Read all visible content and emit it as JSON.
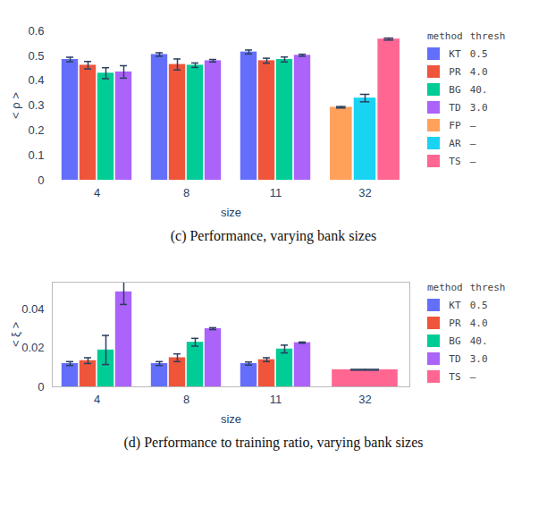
{
  "chart_data": [
    {
      "type": "bar",
      "caption": "(c) Performance, varying bank sizes",
      "x_label": "size",
      "y_label": "< ρ >",
      "categories": [
        "4",
        "8",
        "11",
        "32"
      ],
      "ylim": [
        0,
        0.6
      ],
      "yticks": [
        0,
        0.1,
        0.2,
        0.3,
        0.4,
        0.5,
        0.6
      ],
      "legend_columns": [
        "method",
        "thresh"
      ],
      "series": [
        {
          "name": "KT",
          "thresh": "0.5",
          "color": "#636efa",
          "values": [
            0.485,
            0.505,
            0.515,
            null
          ],
          "errors": [
            0.009,
            0.007,
            0.008,
            null
          ]
        },
        {
          "name": "PR",
          "thresh": "4.0",
          "color": "#ef553b",
          "values": [
            0.462,
            0.465,
            0.48,
            null
          ],
          "errors": [
            0.015,
            0.022,
            0.01,
            null
          ]
        },
        {
          "name": "BG",
          "thresh": "40.",
          "color": "#00cc96",
          "values": [
            0.43,
            0.462,
            0.485,
            null
          ],
          "errors": [
            0.022,
            0.009,
            0.01,
            null
          ]
        },
        {
          "name": "TD",
          "thresh": "3.0",
          "color": "#ab63fa",
          "values": [
            0.435,
            0.48,
            0.502,
            null
          ],
          "errors": [
            0.025,
            0.005,
            0.004,
            null
          ]
        },
        {
          "name": "FP",
          "thresh": "—",
          "color": "#ffa15a",
          "values": [
            null,
            null,
            null,
            0.293
          ],
          "errors": [
            null,
            null,
            null,
            0.003
          ]
        },
        {
          "name": "AR",
          "thresh": "—",
          "color": "#19d3f3",
          "values": [
            null,
            null,
            null,
            0.33
          ],
          "errors": [
            null,
            null,
            null,
            0.015
          ]
        },
        {
          "name": "TS",
          "thresh": "—",
          "color": "#ff6692",
          "values": [
            null,
            null,
            null,
            0.567
          ],
          "errors": [
            null,
            null,
            null,
            0.004
          ]
        }
      ]
    },
    {
      "type": "bar",
      "caption": "(d) Performance to training ratio, varying bank sizes",
      "x_label": "size",
      "y_label": "< ξ >",
      "categories": [
        "4",
        "8",
        "11",
        "32"
      ],
      "ylim": [
        0,
        0.054
      ],
      "yticks": [
        0,
        0.02,
        0.04
      ],
      "legend_columns": [
        "method",
        "thresh"
      ],
      "series": [
        {
          "name": "KT",
          "thresh": "0.5",
          "color": "#636efa",
          "values": [
            0.012,
            0.012,
            0.012,
            null
          ],
          "errors": [
            0.001,
            0.001,
            0.0008,
            null
          ]
        },
        {
          "name": "PR",
          "thresh": "4.0",
          "color": "#ef553b",
          "values": [
            0.0135,
            0.015,
            0.014,
            null
          ],
          "errors": [
            0.0015,
            0.002,
            0.001,
            null
          ]
        },
        {
          "name": "BG",
          "thresh": "40.",
          "color": "#00cc96",
          "values": [
            0.019,
            0.023,
            0.0195,
            null
          ],
          "errors": [
            0.0075,
            0.002,
            0.002,
            null
          ]
        },
        {
          "name": "TD",
          "thresh": "3.0",
          "color": "#ab63fa",
          "values": [
            0.049,
            0.03,
            0.0228,
            null
          ],
          "errors": [
            0.0065,
            0.0005,
            0.0003,
            null
          ]
        },
        {
          "name": "TS",
          "thresh": "—",
          "color": "#ff6692",
          "values": [
            null,
            null,
            null,
            0.0088
          ],
          "errors": [
            null,
            null,
            null,
            0.0002
          ]
        }
      ]
    }
  ]
}
